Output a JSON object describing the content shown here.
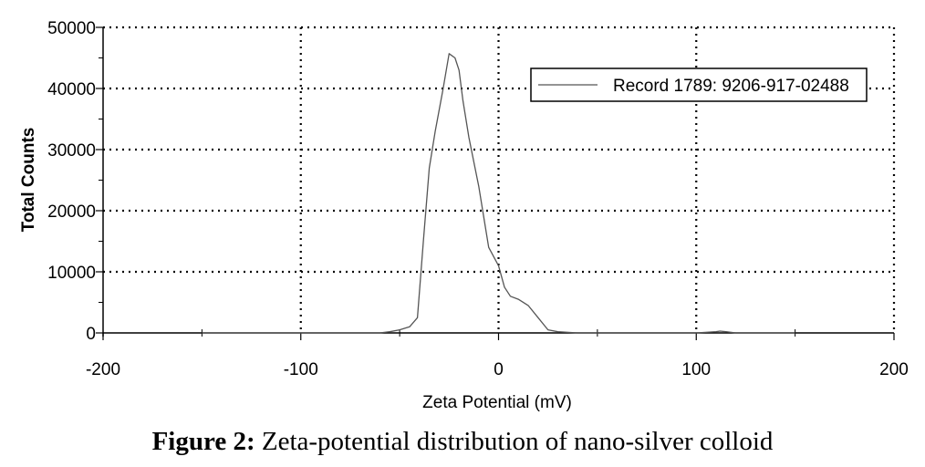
{
  "caption": {
    "label": "Figure 2:",
    "text": " Zeta-potential distribution of nano-silver colloid"
  },
  "chart_data": {
    "type": "line",
    "xlabel": "Zeta Potential (mV)",
    "ylabel": "Total Counts",
    "xlim": [
      -200,
      200
    ],
    "ylim": [
      0,
      50000
    ],
    "xticks": [
      -200,
      -100,
      0,
      100,
      200
    ],
    "yticks": [
      0,
      10000,
      20000,
      30000,
      40000,
      50000
    ],
    "grid": "dotted",
    "legend_position": "top-right",
    "series": [
      {
        "name": "Record 1789: 9206-917-02488",
        "color": "#555555",
        "x": [
          -150,
          -120,
          -100,
          -90,
          -80,
          -70,
          -60,
          -55,
          -50,
          -45,
          -41,
          -38,
          -35,
          -32,
          -28,
          -25,
          -22,
          -20,
          -18,
          -15,
          -10,
          -5,
          0,
          3,
          6,
          10,
          15,
          20,
          25,
          30,
          40,
          50,
          60,
          80,
          100,
          110,
          112,
          115,
          120,
          130,
          150
        ],
        "y": [
          0,
          0,
          0,
          0,
          0,
          0,
          0,
          200,
          500,
          1000,
          2500,
          15000,
          27000,
          33000,
          40000,
          45700,
          45000,
          43000,
          38000,
          32000,
          24000,
          14000,
          11000,
          7500,
          6000,
          5500,
          4500,
          2500,
          500,
          200,
          0,
          0,
          0,
          0,
          0,
          200,
          300,
          200,
          0,
          0,
          0
        ]
      }
    ]
  }
}
